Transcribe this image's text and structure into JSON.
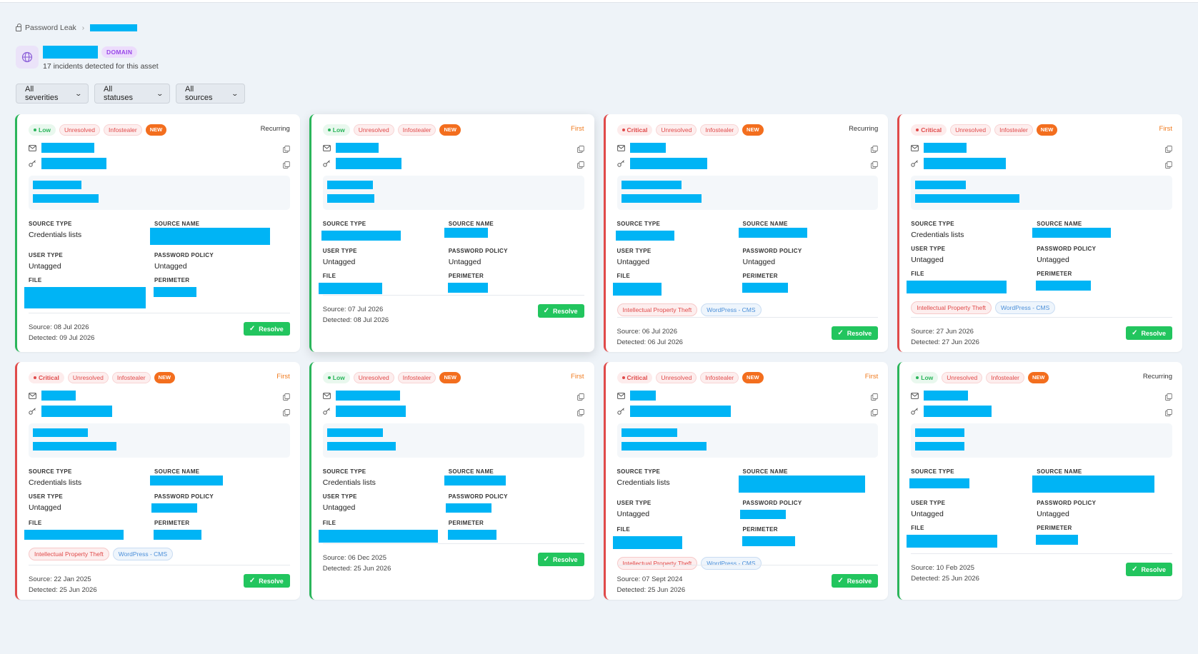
{
  "breadcrumb": {
    "root": "Password Leak"
  },
  "asset": {
    "type_badge": "DOMAIN",
    "incident_summary": "17 incidents detected for this asset"
  },
  "filters": {
    "severity": "All severities",
    "status": "All statuses",
    "source": "All sources"
  },
  "labels": {
    "source_type": "SOURCE TYPE",
    "source_name": "SOURCE NAME",
    "user_type": "USER TYPE",
    "password_policy": "PASSWORD POLICY",
    "file": "FILE",
    "perimeter": "PERIMETER",
    "resolve": "Resolve"
  },
  "colors": {
    "low": "#2bb55b",
    "critical": "#e04a4a",
    "new": "#f36e1e",
    "resolve": "#22c55e",
    "first": "#f07a1d",
    "redaction": "#00b4f5"
  },
  "cards": [
    {
      "severity": "Low",
      "status": "Unresolved",
      "source": "Infostealer",
      "new": "NEW",
      "occurrence": "Recurring",
      "source_type": "Credentials lists",
      "user_type": "Untagged",
      "password_policy": "Untagged",
      "threats": [],
      "source_date": "Source: 08 Jul 2026",
      "detected_date": "Detected: 09 Jul 2026"
    },
    {
      "severity": "Low",
      "status": "Unresolved",
      "source": "Infostealer",
      "new": "NEW",
      "occurrence": "First",
      "source_type": "",
      "user_type": "Untagged",
      "password_policy": "Untagged",
      "threats": [],
      "source_date": "Source: 07 Jul 2026",
      "detected_date": "Detected: 08 Jul 2026"
    },
    {
      "severity": "Critical",
      "status": "Unresolved",
      "source": "Infostealer",
      "new": "NEW",
      "occurrence": "Recurring",
      "source_type": "",
      "user_type": "Untagged",
      "password_policy": "Untagged",
      "threats": [
        "Intellectual Property Theft",
        "WordPress - CMS"
      ],
      "source_date": "Source: 06 Jul 2026",
      "detected_date": "Detected: 06 Jul 2026"
    },
    {
      "severity": "Critical",
      "status": "Unresolved",
      "source": "Infostealer",
      "new": "NEW",
      "occurrence": "First",
      "source_type": "Credentials lists",
      "user_type": "Untagged",
      "password_policy": "Untagged",
      "threats": [
        "Intellectual Property Theft",
        "WordPress - CMS"
      ],
      "source_date": "Source: 27 Jun 2026",
      "detected_date": "Detected: 27 Jun 2026"
    },
    {
      "severity": "Critical",
      "status": "Unresolved",
      "source": "Infostealer",
      "new": "NEW",
      "occurrence": "First",
      "source_type": "Credentials lists",
      "user_type": "Untagged",
      "password_policy": "",
      "threats": [
        "Intellectual Property Theft",
        "WordPress - CMS"
      ],
      "source_date": "Source: 22 Jan 2025",
      "detected_date": "Detected: 25 Jun 2026"
    },
    {
      "severity": "Low",
      "status": "Unresolved",
      "source": "Infostealer",
      "new": "NEW",
      "occurrence": "First",
      "source_type": "Credentials lists",
      "user_type": "Untagged",
      "password_policy": "",
      "threats": [],
      "source_date": "Source: 06 Dec 2025",
      "detected_date": "Detected: 25 Jun 2026"
    },
    {
      "severity": "Critical",
      "status": "Unresolved",
      "source": "Infostealer",
      "new": "NEW",
      "occurrence": "First",
      "source_type": "Credentials lists",
      "user_type": "Untagged",
      "password_policy": "",
      "threats": [
        "Intellectual Property Theft",
        "WordPress - CMS"
      ],
      "source_date": "Source: 07 Sept 2024",
      "detected_date": "Detected: 25 Jun 2026"
    },
    {
      "severity": "Low",
      "status": "Unresolved",
      "source": "Infostealer",
      "new": "NEW",
      "occurrence": "Recurring",
      "source_type": "",
      "user_type": "Untagged",
      "password_policy": "Untagged",
      "threats": [],
      "source_date": "Source: 10 Feb 2025",
      "detected_date": "Detected: 25 Jun 2026"
    }
  ]
}
